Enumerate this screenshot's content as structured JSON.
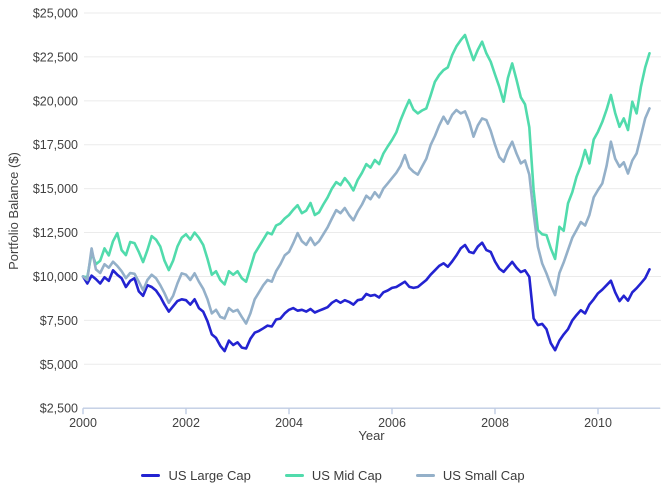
{
  "colors": {
    "background": "#ffffff",
    "gridline": "#ebebeb",
    "axis": "#c0cde4",
    "text": "#424242",
    "large_cap": "#2323d1",
    "mid_cap": "#51dbac",
    "small_cap": "#94b0c9"
  },
  "chart_data": {
    "type": "line",
    "title": "",
    "xlabel": "Year",
    "ylabel": "Portfolio Balance ($)",
    "x_start_year": 2000,
    "points_per_year": 12,
    "xlim": [
      2000,
      2011.2
    ],
    "ylim": [
      2500,
      25000
    ],
    "grid": "horizontal-only",
    "legend_position": "bottom",
    "x_ticks": [
      2000,
      2002,
      2004,
      2006,
      2008,
      2010
    ],
    "x_tick_labels": [
      "2000",
      "2002",
      "2004",
      "2006",
      "2008",
      "2010"
    ],
    "y_ticks": [
      2500,
      5000,
      7500,
      10000,
      12500,
      15000,
      17500,
      20000,
      22500,
      25000
    ],
    "y_tick_labels": [
      "$2,500",
      "$5,000",
      "$7,500",
      "$10,000",
      "$12,500",
      "$15,000",
      "$17,500",
      "$20,000",
      "$22,500",
      "$25,000"
    ],
    "series": [
      {
        "name": "US Large Cap",
        "color": "#2323d1",
        "values": [
          10000,
          9600,
          10050,
          9850,
          9600,
          9950,
          9750,
          10350,
          10100,
          9900,
          9400,
          9750,
          9900,
          9150,
          8900,
          9500,
          9400,
          9200,
          8850,
          8400,
          8000,
          8300,
          8600,
          8700,
          8650,
          8400,
          8700,
          8200,
          8000,
          7450,
          6700,
          6500,
          6050,
          5750,
          6350,
          6100,
          6250,
          5950,
          5900,
          6450,
          6800,
          6900,
          7050,
          7200,
          7150,
          7550,
          7600,
          7900,
          8100,
          8200,
          8050,
          8100,
          8000,
          8150,
          7950,
          8050,
          8150,
          8250,
          8500,
          8650,
          8500,
          8650,
          8550,
          8400,
          8650,
          8700,
          9000,
          8900,
          8950,
          8800,
          9100,
          9200,
          9350,
          9400,
          9550,
          9700,
          9420,
          9350,
          9400,
          9600,
          9800,
          10100,
          10350,
          10600,
          10750,
          10550,
          10850,
          11200,
          11600,
          11790,
          11400,
          11330,
          11700,
          11920,
          11500,
          11400,
          10850,
          10450,
          10260,
          10550,
          10830,
          10500,
          10250,
          10350,
          9980,
          7610,
          7230,
          7300,
          7000,
          6200,
          5800,
          6350,
          6700,
          7000,
          7500,
          7800,
          8080,
          7900,
          8400,
          8700,
          9040,
          9250,
          9500,
          9760,
          9100,
          8600,
          8900,
          8620,
          9100,
          9330,
          9610,
          9900,
          10410
        ]
      },
      {
        "name": "US Mid Cap",
        "color": "#51dbac",
        "values": [
          10000,
          9950,
          11350,
          10700,
          10900,
          11600,
          11200,
          12000,
          12470,
          11500,
          11215,
          11960,
          11900,
          11400,
          10820,
          11500,
          12300,
          12100,
          11700,
          10900,
          10360,
          10900,
          11700,
          12200,
          12400,
          12100,
          12500,
          12200,
          11800,
          11000,
          10100,
          10300,
          9800,
          9550,
          10300,
          10100,
          10300,
          9900,
          9700,
          10500,
          11300,
          11700,
          12100,
          12500,
          12400,
          12900,
          13020,
          13300,
          13500,
          13800,
          14060,
          13600,
          13750,
          14180,
          13500,
          13650,
          14100,
          14500,
          15000,
          15375,
          15200,
          15600,
          15300,
          14900,
          15500,
          15900,
          16400,
          16200,
          16630,
          16400,
          17000,
          17400,
          17770,
          18200,
          18900,
          19500,
          20045,
          19500,
          19285,
          19450,
          19570,
          20300,
          21085,
          21470,
          21750,
          21900,
          22600,
          23100,
          23450,
          23745,
          23000,
          22320,
          22900,
          23365,
          22700,
          22225,
          21500,
          20800,
          19950,
          21300,
          22130,
          21200,
          20200,
          19800,
          18500,
          14920,
          12640,
          12400,
          12355,
          11600,
          11000,
          12830,
          12600,
          14160,
          14800,
          15675,
          16300,
          17200,
          16440,
          17800,
          18240,
          18800,
          19500,
          20330,
          19300,
          18520,
          19000,
          18340,
          19950,
          19285,
          20800,
          21900,
          22705
        ]
      },
      {
        "name": "US Small Cap",
        "color": "#94b0c9",
        "values": [
          10000,
          9800,
          11600,
          10400,
          10200,
          10700,
          10500,
          10840,
          10600,
          10300,
          9900,
          10200,
          10150,
          9700,
          9220,
          9800,
          10100,
          9900,
          9500,
          9050,
          8500,
          8900,
          9600,
          10180,
          10100,
          9800,
          10180,
          9700,
          9300,
          8700,
          7900,
          8100,
          7700,
          7605,
          8200,
          8000,
          8100,
          7700,
          7320,
          7900,
          8700,
          9100,
          9500,
          9800,
          9700,
          10300,
          10700,
          11200,
          11400,
          11900,
          12470,
          12000,
          11800,
          12200,
          11790,
          12000,
          12400,
          12800,
          13300,
          13780,
          13600,
          13900,
          13500,
          13200,
          13700,
          14100,
          14600,
          14400,
          14800,
          14500,
          15000,
          15300,
          15600,
          15900,
          16300,
          16910,
          16200,
          15960,
          15800,
          16245,
          16700,
          17480,
          18000,
          18600,
          19095,
          18700,
          19200,
          19475,
          19285,
          19400,
          18800,
          17955,
          18600,
          19000,
          18905,
          18300,
          17500,
          16800,
          16530,
          17200,
          17670,
          17000,
          16440,
          16600,
          15800,
          13590,
          11690,
          10740,
          10170,
          9500,
          8940,
          10200,
          10800,
          11500,
          12200,
          12640,
          13100,
          12900,
          13500,
          14500,
          14920,
          15300,
          16300,
          17670,
          16700,
          16245,
          16500,
          15865,
          16600,
          17005,
          18000,
          19000,
          19570
        ]
      }
    ]
  }
}
